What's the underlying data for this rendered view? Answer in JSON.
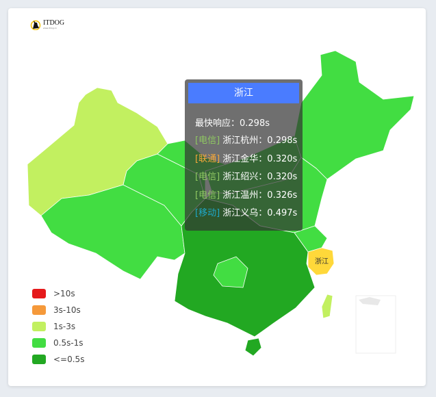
{
  "logo": {
    "text": "ITDOG",
    "subtext": "www.itdog.cn"
  },
  "colors": {
    "gt10s": "#e5191b",
    "s3_10": "#f5993a",
    "s1_3": "#c2f060",
    "s05_1": "#42dd42",
    "le05": "#22a822",
    "highlight": "#ffd83a",
    "tooltip_title_bg": "#4a7cff"
  },
  "map": {
    "highlighted_region": "浙江",
    "highlighted_label": "浙江"
  },
  "legend": [
    {
      "label": ">10s",
      "color": "#e5191b"
    },
    {
      "label": "3s-10s",
      "color": "#f5993a"
    },
    {
      "label": "1s-3s",
      "color": "#c2f060"
    },
    {
      "label": "0.5s-1s",
      "color": "#42dd42"
    },
    {
      "label": "<=0.5s",
      "color": "#22a822"
    }
  ],
  "tooltip": {
    "title": "浙江",
    "fastest": "最快响应：0.298s",
    "rows": [
      {
        "isp": "[电信]",
        "isp_color": "#8fc862",
        "node": "浙江杭州：0.298s"
      },
      {
        "isp": "[联通]",
        "isp_color": "#f5a83a",
        "node": "浙江金华：0.320s"
      },
      {
        "isp": "[电信]",
        "isp_color": "#8fc862",
        "node": "浙江绍兴：0.320s"
      },
      {
        "isp": "[电信]",
        "isp_color": "#8fc862",
        "node": "浙江温州：0.326s"
      },
      {
        "isp": "[移动]",
        "isp_color": "#1fa8c9",
        "node": "浙江义乌：0.497s"
      }
    ]
  }
}
